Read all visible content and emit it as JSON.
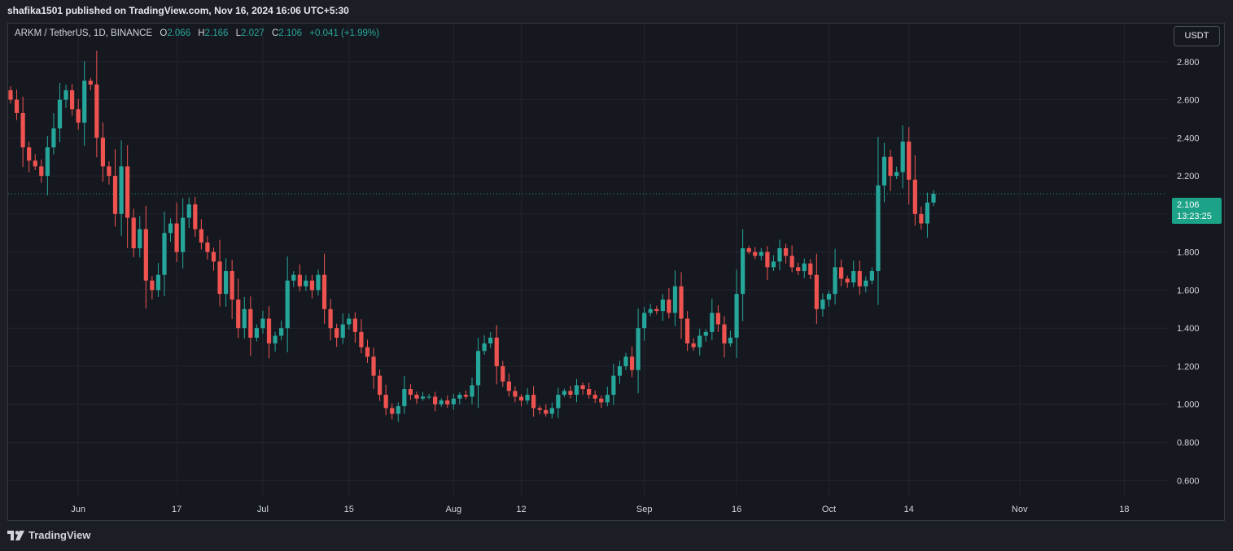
{
  "header": {
    "published_line": "shafika1501 published on TradingView.com, Nov 16, 2024 16:06 UTC+5:30"
  },
  "legend": {
    "symbol": "ARKM / TetherUS, 1D, BINANCE",
    "o_label": "O",
    "o_value": "2.066",
    "h_label": "H",
    "h_value": "2.166",
    "l_label": "L",
    "l_value": "2.027",
    "c_label": "C",
    "c_value": "2.106",
    "change": "+0.041 (+1.99%)"
  },
  "toolbar": {
    "currency": "USDT"
  },
  "price_tag": {
    "price": "2.106",
    "countdown": "13:23:25"
  },
  "footer": {
    "brand": "TradingView"
  },
  "colors": {
    "up": "#26a69a",
    "down": "#ef5350",
    "last_price": "#1ba287"
  },
  "icons": {
    "brand_logo": "tradingview-logo-icon"
  },
  "chart_data": {
    "type": "candlestick",
    "symbol": "ARKM / TetherUS",
    "interval": "1D",
    "exchange": "BINANCE",
    "x_start_date": "2024-05-21",
    "ylim": [
      0.52,
      3.0
    ],
    "y_ticks": [
      "0.600",
      "0.800",
      "1.000",
      "1.200",
      "1.400",
      "1.600",
      "1.800",
      "2.000",
      "2.200",
      "2.400",
      "2.600",
      "2.800"
    ],
    "x_ticks": [
      {
        "label": "Jun",
        "date": "2024-06-01"
      },
      {
        "label": "17",
        "date": "2024-06-17"
      },
      {
        "label": "Jul",
        "date": "2024-07-01"
      },
      {
        "label": "15",
        "date": "2024-07-15"
      },
      {
        "label": "Aug",
        "date": "2024-08-01"
      },
      {
        "label": "12",
        "date": "2024-08-12"
      },
      {
        "label": "Sep",
        "date": "2024-09-01"
      },
      {
        "label": "16",
        "date": "2024-09-16"
      },
      {
        "label": "Oct",
        "date": "2024-10-01"
      },
      {
        "label": "14",
        "date": "2024-10-14"
      },
      {
        "label": "Nov",
        "date": "2024-11-01"
      },
      {
        "label": "18",
        "date": "2024-11-18"
      }
    ],
    "last_price": 2.106,
    "grid": true,
    "closes": [
      2.6,
      2.53,
      2.35,
      2.28,
      2.25,
      2.2,
      2.35,
      2.45,
      2.6,
      2.65,
      2.55,
      2.48,
      2.7,
      2.68,
      2.4,
      2.25,
      2.2,
      2.0,
      2.25,
      1.98,
      1.82,
      1.92,
      1.65,
      1.6,
      1.68,
      1.9,
      1.95,
      1.8,
      1.98,
      2.05,
      1.92,
      1.85,
      1.8,
      1.75,
      1.58,
      1.7,
      1.55,
      1.4,
      1.5,
      1.35,
      1.4,
      1.45,
      1.32,
      1.36,
      1.4,
      1.65,
      1.68,
      1.62,
      1.65,
      1.6,
      1.68,
      1.5,
      1.4,
      1.35,
      1.42,
      1.45,
      1.38,
      1.3,
      1.25,
      1.15,
      1.05,
      0.98,
      0.95,
      0.99,
      1.08,
      1.05,
      1.03,
      1.04,
      1.04,
      1.0,
      1.02,
      1.0,
      1.03,
      1.05,
      1.04,
      1.1,
      1.28,
      1.32,
      1.35,
      1.2,
      1.12,
      1.07,
      1.04,
      1.02,
      1.05,
      0.98,
      0.97,
      0.95,
      0.98,
      1.05,
      1.07,
      1.05,
      1.1,
      1.08,
      1.05,
      1.03,
      1.01,
      1.05,
      1.15,
      1.2,
      1.25,
      1.18,
      1.4,
      1.48,
      1.5,
      1.49,
      1.55,
      1.48,
      1.62,
      1.45,
      1.32,
      1.3,
      1.36,
      1.38,
      1.48,
      1.42,
      1.32,
      1.35,
      1.58,
      1.82,
      1.8,
      1.78,
      1.8,
      1.72,
      1.75,
      1.82,
      1.78,
      1.72,
      1.7,
      1.74,
      1.68,
      1.5,
      1.55,
      1.58,
      1.72,
      1.66,
      1.64,
      1.7,
      1.62,
      1.65,
      1.7,
      2.15,
      2.3,
      2.2,
      2.22,
      2.38,
      2.18,
      2.0,
      1.95,
      2.06,
      2.106
    ]
  }
}
